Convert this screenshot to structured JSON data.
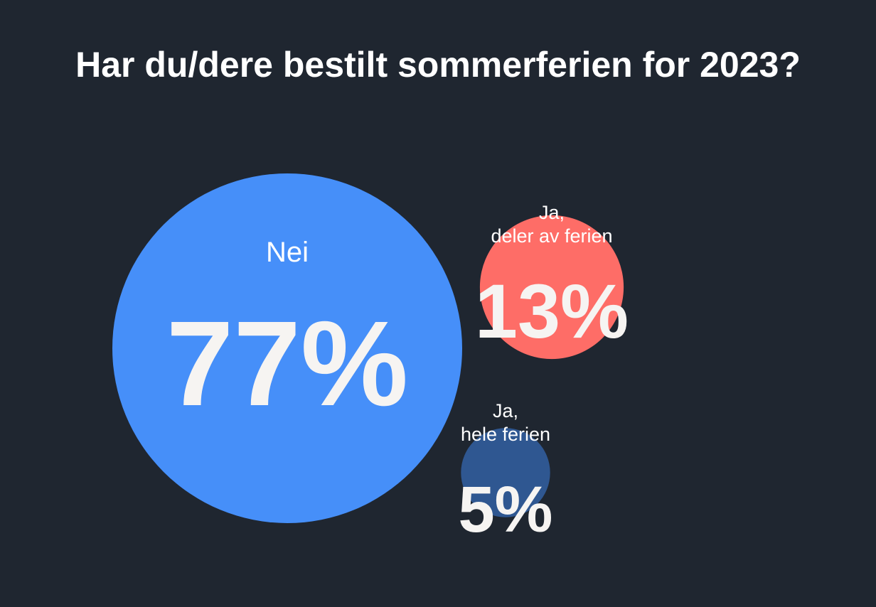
{
  "colors": {
    "background": "#1f2630",
    "text": "#ffffff",
    "percent_text": "#f6f4f2"
  },
  "chart_data": {
    "type": "bubble",
    "title": "Har du/dere bestilt sommerferien for 2023?",
    "unit": "%",
    "series": [
      {
        "label_lines": [
          "Nei"
        ],
        "value": 77,
        "display": "77%",
        "color": "#468ff9"
      },
      {
        "label_lines": [
          "Ja,",
          "deler av ferien"
        ],
        "value": 13,
        "display": "13%",
        "color": "#fe6d67"
      },
      {
        "label_lines": [
          "Ja,",
          "hele ferien"
        ],
        "value": 5,
        "display": "5%",
        "color": "#2f5791"
      }
    ]
  }
}
